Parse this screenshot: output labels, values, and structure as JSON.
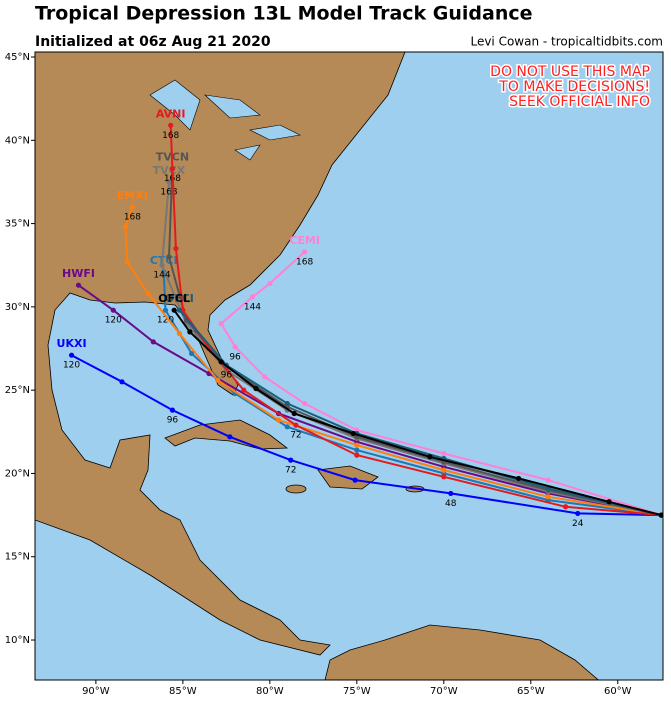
{
  "header": {
    "title": "Tropical Depression 13L Model Track Guidance",
    "subtitle": "Initialized at 06z Aug 21 2020",
    "credit": "Levi Cowan - tropicaltidbits.com"
  },
  "warning": [
    "DO NOT USE THIS MAP",
    "TO MAKE DECISIONS!",
    "SEEK OFFICIAL INFO"
  ],
  "map": {
    "lonlim": [
      -93.5,
      -57.4
    ],
    "latlim": [
      7.6,
      45.3
    ],
    "lonticks": [
      {
        "value": -90,
        "label": "90°W"
      },
      {
        "value": -85,
        "label": "85°W"
      },
      {
        "value": -80,
        "label": "80°W"
      },
      {
        "value": -75,
        "label": "75°W"
      },
      {
        "value": -70,
        "label": "70°W"
      },
      {
        "value": -65,
        "label": "65°W"
      },
      {
        "value": -60,
        "label": "60°W"
      }
    ],
    "latticks": [
      {
        "value": 45,
        "label": "45°N"
      },
      {
        "value": 40,
        "label": "40°N"
      },
      {
        "value": 35,
        "label": "35°N"
      },
      {
        "value": 30,
        "label": "30°N"
      },
      {
        "value": 25,
        "label": "25°N"
      },
      {
        "value": 20,
        "label": "20°N"
      },
      {
        "value": 15,
        "label": "15°N"
      },
      {
        "value": 10,
        "label": "10°N"
      }
    ]
  },
  "models": [
    {
      "name": "UKXI",
      "color": "#0000ff",
      "points": [
        {
          "lon": -57.5,
          "lat": 17.5
        },
        {
          "lon": -62.3,
          "lat": 17.6,
          "hour": "24"
        },
        {
          "lon": -69.6,
          "lat": 18.8,
          "hour": "48"
        },
        {
          "lon": -75.1,
          "lat": 19.6
        },
        {
          "lon": -78.8,
          "lat": 20.8,
          "hour": "72"
        },
        {
          "lon": -82.3,
          "lat": 22.2
        },
        {
          "lon": -85.6,
          "lat": 23.8,
          "hour": "96"
        },
        {
          "lon": -88.5,
          "lat": 25.5
        },
        {
          "lon": -91.4,
          "lat": 27.1,
          "hour": "120"
        }
      ]
    },
    {
      "name": "CEMI",
      "color": "#ff80d5",
      "points": [
        {
          "lon": -57.5,
          "lat": 17.5
        },
        {
          "lon": -64,
          "lat": 19.6
        },
        {
          "lon": -70,
          "lat": 21.2
        },
        {
          "lon": -75,
          "lat": 22.6
        },
        {
          "lon": -78,
          "lat": 24.2
        },
        {
          "lon": -80.3,
          "lat": 25.8
        },
        {
          "lon": -82,
          "lat": 27.6,
          "hour": "96"
        },
        {
          "lon": -82.8,
          "lat": 29
        },
        {
          "lon": -81,
          "lat": 30.6,
          "hour": "144"
        },
        {
          "lon": -80,
          "lat": 31.4
        },
        {
          "lon": -78,
          "lat": 33.3,
          "hour": "168"
        }
      ]
    },
    {
      "name": "CTCI",
      "color": "#1f77b4",
      "points": [
        {
          "lon": -57.5,
          "lat": 17.5
        },
        {
          "lon": -64,
          "lat": 18.4
        },
        {
          "lon": -70,
          "lat": 20
        },
        {
          "lon": -75,
          "lat": 21.4
        },
        {
          "lon": -79,
          "lat": 22.8
        },
        {
          "lon": -82,
          "lat": 24.8
        },
        {
          "lon": -84.5,
          "lat": 27.2
        },
        {
          "lon": -86,
          "lat": 29.8,
          "hour": "120"
        },
        {
          "lon": -86.1,
          "lat": 32.1
        }
      ]
    },
    {
      "name": "HWFI",
      "color": "#6a0a8a",
      "points": [
        {
          "lon": -57.5,
          "lat": 17.5
        },
        {
          "lon": -64,
          "lat": 18.8
        },
        {
          "lon": -70,
          "lat": 20.4
        },
        {
          "lon": -75,
          "lat": 21.9
        },
        {
          "lon": -79.5,
          "lat": 23.6
        },
        {
          "lon": -83.5,
          "lat": 26
        },
        {
          "lon": -86.7,
          "lat": 27.9
        },
        {
          "lon": -89,
          "lat": 29.8,
          "hour": "120"
        },
        {
          "lon": -91,
          "lat": 31.3
        }
      ]
    },
    {
      "name": "EMXI",
      "color": "#ff7f0e",
      "points": [
        {
          "lon": -57.5,
          "lat": 17.5
        },
        {
          "lon": -64,
          "lat": 18.6
        },
        {
          "lon": -70,
          "lat": 20.2
        },
        {
          "lon": -75,
          "lat": 21.7
        },
        {
          "lon": -79.5,
          "lat": 23.2
        },
        {
          "lon": -83,
          "lat": 25.6
        },
        {
          "lon": -85.2,
          "lat": 28.4
        },
        {
          "lon": -87,
          "lat": 30.8
        },
        {
          "lon": -88.2,
          "lat": 32.7
        },
        {
          "lon": -88.3,
          "lat": 34.8
        },
        {
          "lon": -87.9,
          "lat": 36,
          "hour": "168"
        }
      ]
    },
    {
      "name": "TVCX",
      "color": "#777777",
      "points": [
        {
          "lon": -57.5,
          "lat": 17.5
        },
        {
          "lon": -64,
          "lat": 18.9
        },
        {
          "lon": -70,
          "lat": 20.6
        },
        {
          "lon": -75,
          "lat": 22.1
        },
        {
          "lon": -79,
          "lat": 23.8
        },
        {
          "lon": -82.5,
          "lat": 26.2
        },
        {
          "lon": -84.8,
          "lat": 29
        },
        {
          "lon": -86.2,
          "lat": 32.5,
          "hour": "144"
        },
        {
          "lon": -85.8,
          "lat": 37.5,
          "hour": "168"
        }
      ]
    },
    {
      "name": "TVCN",
      "color": "#555555",
      "points": [
        {
          "lon": -57.5,
          "lat": 17.5
        },
        {
          "lon": -64,
          "lat": 19
        },
        {
          "lon": -70,
          "lat": 20.7
        },
        {
          "lon": -75,
          "lat": 22.2
        },
        {
          "lon": -79,
          "lat": 24
        },
        {
          "lon": -82.5,
          "lat": 26.4
        },
        {
          "lon": -84.8,
          "lat": 29.2
        },
        {
          "lon": -85.8,
          "lat": 33
        },
        {
          "lon": -85.6,
          "lat": 38.3,
          "hour": "168"
        }
      ]
    },
    {
      "name": "AVNI",
      "color": "#e41a1c",
      "points": [
        {
          "lon": -57.5,
          "lat": 17.5
        },
        {
          "lon": -63,
          "lat": 18
        },
        {
          "lon": -70,
          "lat": 19.8
        },
        {
          "lon": -75,
          "lat": 21.1
        },
        {
          "lon": -78.5,
          "lat": 22.9,
          "hour": "72"
        },
        {
          "lon": -81.5,
          "lat": 25
        },
        {
          "lon": -83.5,
          "lat": 27.5
        },
        {
          "lon": -85,
          "lat": 29.8
        },
        {
          "lon": -85.4,
          "lat": 33.5
        },
        {
          "lon": -85.6,
          "lat": 38.3
        },
        {
          "lon": -85.7,
          "lat": 40.9,
          "hour": "168"
        }
      ]
    },
    {
      "name": "OFCI",
      "color": "#1b5e7a",
      "points": [
        {
          "lon": -57.5,
          "lat": 17.5
        },
        {
          "lon": -64,
          "lat": 19.1
        },
        {
          "lon": -70,
          "lat": 20.9
        },
        {
          "lon": -75,
          "lat": 22.4
        },
        {
          "lon": -79,
          "lat": 24.2
        },
        {
          "lon": -82.5,
          "lat": 26.5,
          "hour": "96"
        },
        {
          "lon": -85.2,
          "lat": 29.8
        }
      ]
    },
    {
      "name": "OFCL",
      "color": "#000000",
      "points": [
        {
          "lon": -57.5,
          "lat": 17.5
        },
        {
          "lon": -60.5,
          "lat": 18.3
        },
        {
          "lon": -65.7,
          "lat": 19.7
        },
        {
          "lon": -70.8,
          "lat": 21
        },
        {
          "lon": -75.2,
          "lat": 22.4
        },
        {
          "lon": -78.6,
          "lat": 23.6
        },
        {
          "lon": -80.8,
          "lat": 25.1
        },
        {
          "lon": -82.8,
          "lat": 26.7
        },
        {
          "lon": -84.6,
          "lat": 28.5
        },
        {
          "lon": -85.5,
          "lat": 29.8
        }
      ]
    }
  ]
}
